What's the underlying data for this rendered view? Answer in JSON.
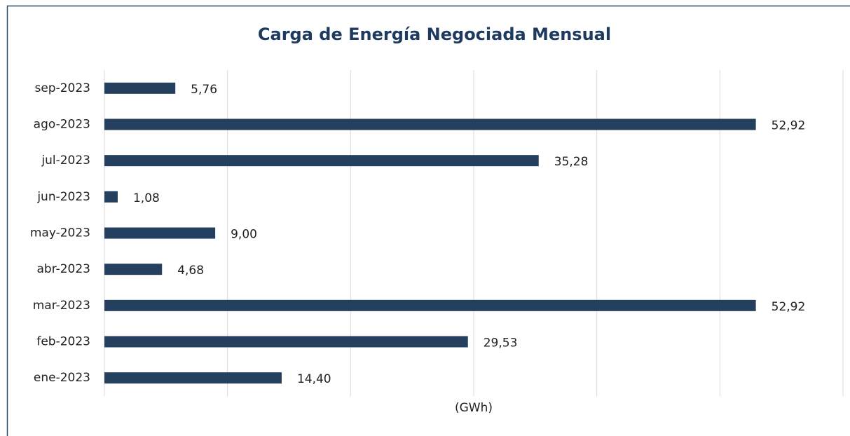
{
  "chart_data": {
    "type": "bar",
    "orientation": "horizontal",
    "title": "Carga de Energía Negociada Mensual",
    "x_label": "(GWh)",
    "categories": [
      "ene-2023",
      "feb-2023",
      "mar-2023",
      "abr-2023",
      "may-2023",
      "jun-2023",
      "jul-2023",
      "ago-2023",
      "sep-2023"
    ],
    "values": [
      14.4,
      29.53,
      52.92,
      4.68,
      9.0,
      1.08,
      35.28,
      52.92,
      5.76
    ],
    "value_labels": [
      "14,40",
      "29,53",
      "52,92",
      "4,68",
      "9,00",
      "1,08",
      "35,28",
      "52,92",
      "5,76"
    ],
    "color": "#253f5f",
    "xlim": [
      0,
      60
    ],
    "xticks": [
      0,
      10,
      20,
      30,
      40,
      50,
      60
    ],
    "grid": true
  }
}
